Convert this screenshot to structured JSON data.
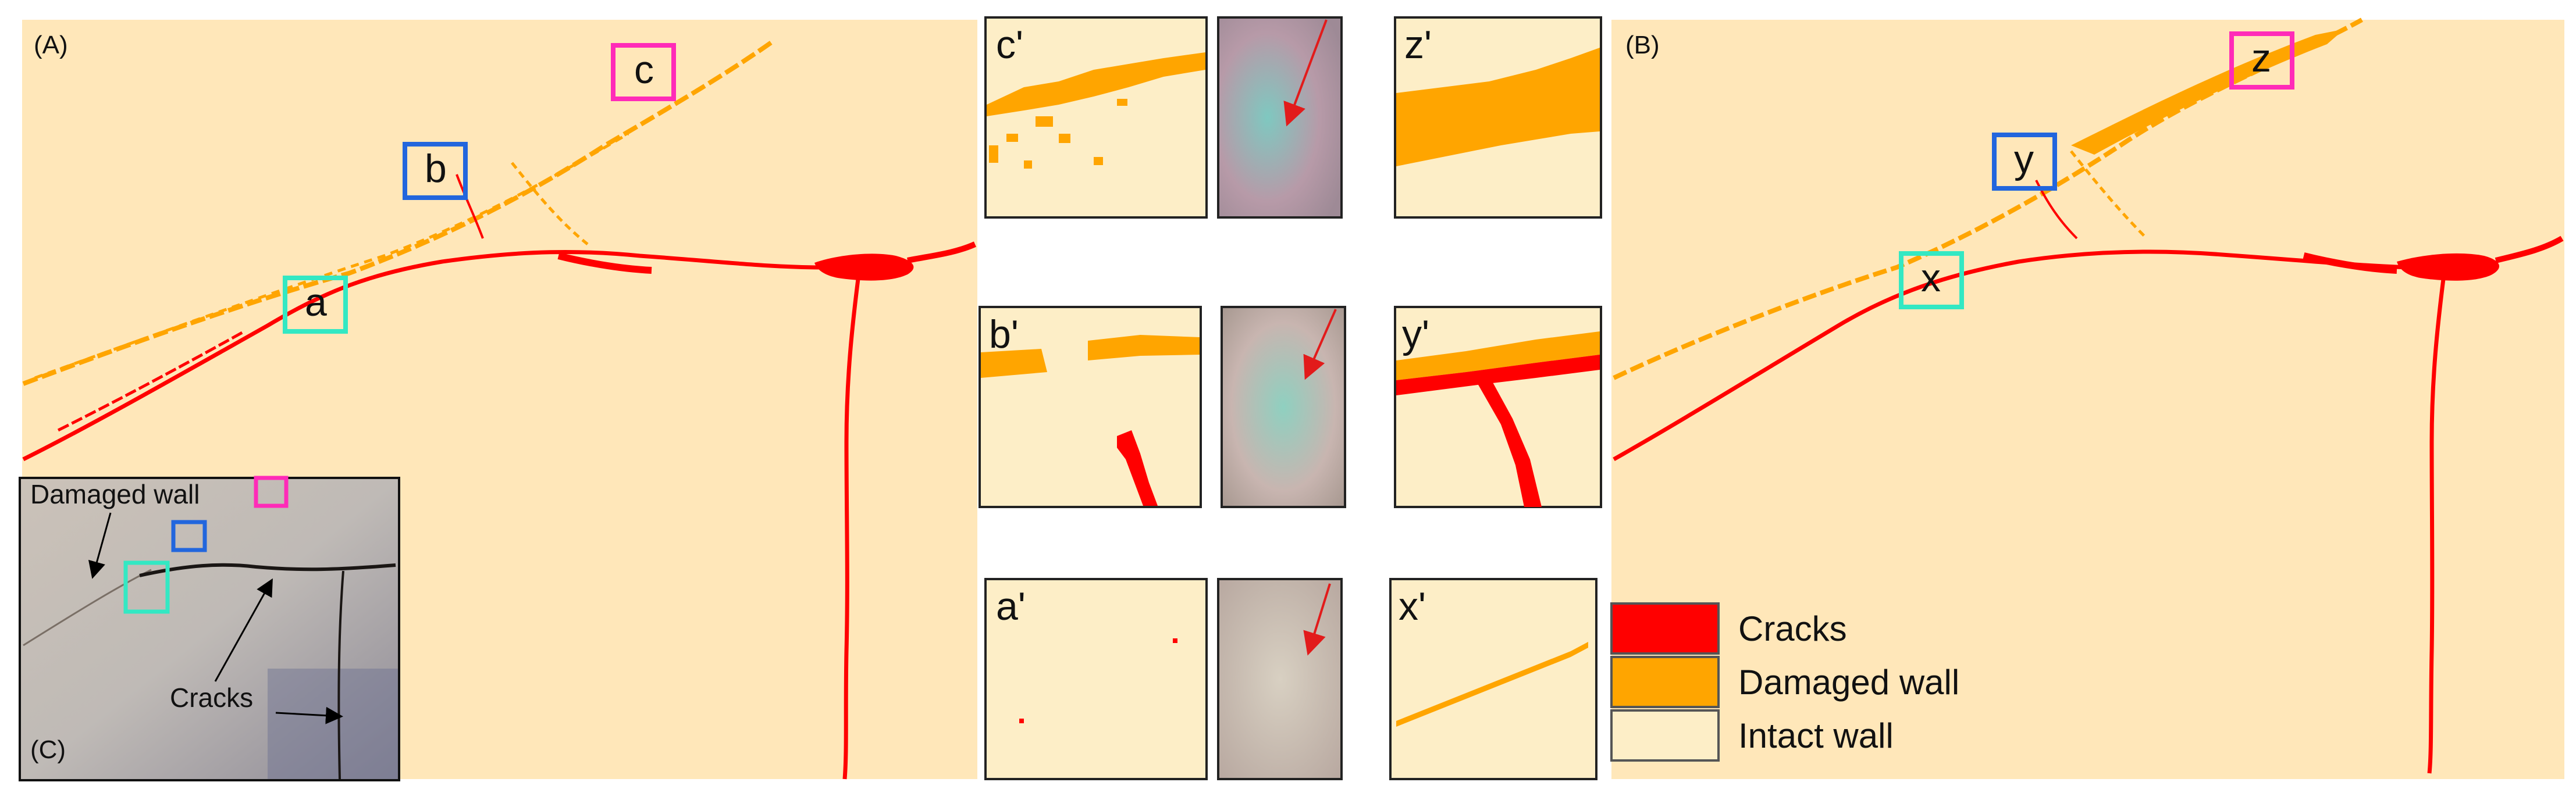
{
  "colors": {
    "background": "#ffe7b9",
    "crack": "#ff0000",
    "damaged": "#ffa500",
    "intact": "#fdeec7",
    "box_c": "#ff2bb8",
    "box_b": "#2266dd",
    "box_a": "#33e8c3",
    "arrow": "#e21b1b"
  },
  "panels": {
    "A": {
      "label": "(A)",
      "boxes": {
        "c": "c",
        "b": "b",
        "a": "a"
      }
    },
    "B": {
      "label": "(B)",
      "boxes": {
        "z": "z",
        "y": "y",
        "x": "x"
      }
    },
    "C": {
      "label": "(C)",
      "annotations": {
        "damaged": "Damaged wall",
        "cracks": "Cracks"
      }
    }
  },
  "thumbnails": {
    "row1": {
      "left": "c'",
      "right": "z'"
    },
    "row2": {
      "left": "b'",
      "right": "y'"
    },
    "row3": {
      "left": "a'",
      "right": "x'"
    }
  },
  "legend": [
    {
      "label": "Cracks",
      "color": "#ff0000"
    },
    {
      "label": "Damaged wall",
      "color": "#ffa500"
    },
    {
      "label": "Intact wall",
      "color": "#fdeec7"
    }
  ]
}
